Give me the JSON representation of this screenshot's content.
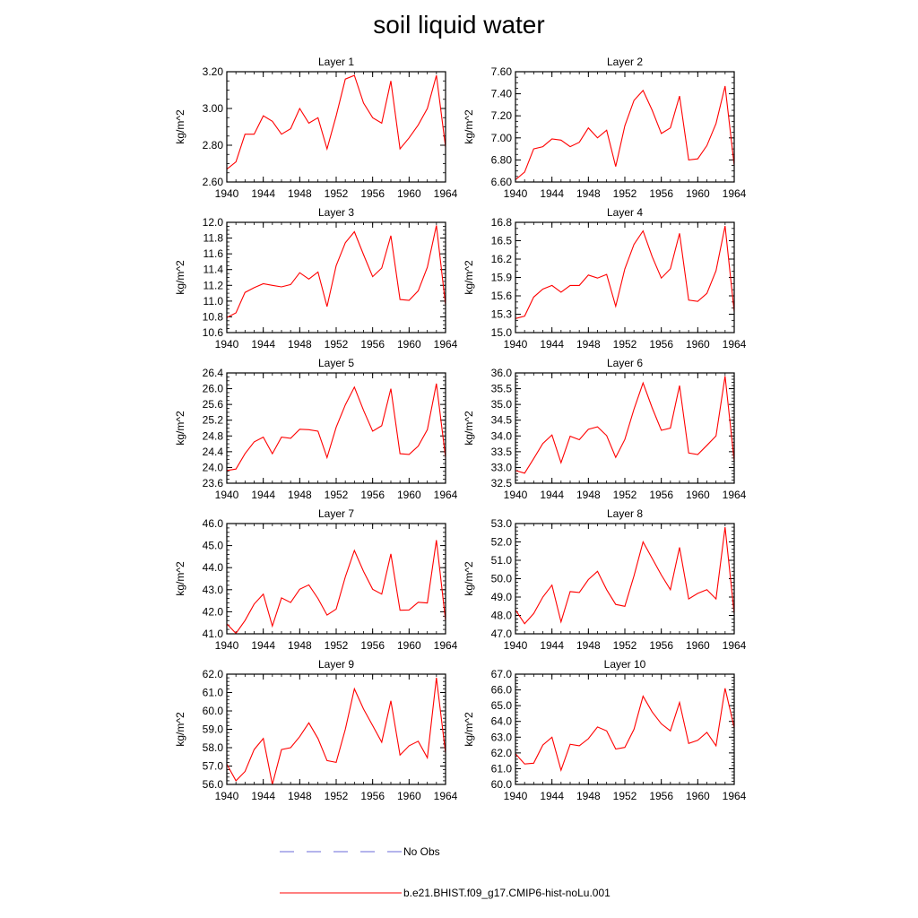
{
  "title": "soil liquid water",
  "legend": {
    "items": [
      {
        "label": "No Obs",
        "color": "#6a6ad8",
        "style": "dashed"
      },
      {
        "label": "b.e21.BHIST.f09_g17.CMIP6-hist-noLu.001",
        "color": "#ff0000",
        "style": "solid"
      }
    ]
  },
  "chart_data": [
    {
      "type": "line",
      "title": "Layer 1",
      "ylabel": "kg/m^2",
      "xlim": [
        1940,
        1964
      ],
      "ylim": [
        2.6,
        3.2
      ],
      "xticks": [
        1940,
        1944,
        1948,
        1952,
        1956,
        1960,
        1964
      ],
      "yticks": [
        "2.60",
        "2.80",
        "3.00",
        "3.20"
      ],
      "yminor": 0.05,
      "series": [
        {
          "name": "b.e21.BHIST.f09_g17.CMIP6-hist-noLu.001",
          "color": "#ff0000",
          "x": [
            1940,
            1941,
            1942,
            1943,
            1944,
            1945,
            1946,
            1947,
            1948,
            1949,
            1950,
            1951,
            1952,
            1953,
            1954,
            1955,
            1956,
            1957,
            1958,
            1959,
            1960,
            1961,
            1962,
            1963,
            1964
          ],
          "y": [
            2.67,
            2.71,
            2.86,
            2.86,
            2.96,
            2.93,
            2.86,
            2.89,
            3.0,
            2.92,
            2.95,
            2.78,
            2.96,
            3.16,
            3.18,
            3.03,
            2.95,
            2.92,
            3.15,
            2.78,
            2.84,
            2.91,
            3.0,
            3.18,
            2.79
          ]
        }
      ]
    },
    {
      "type": "line",
      "title": "Layer 2",
      "ylabel": "kg/m^2",
      "xlim": [
        1940,
        1964
      ],
      "ylim": [
        6.6,
        7.6
      ],
      "xticks": [
        1940,
        1944,
        1948,
        1952,
        1956,
        1960,
        1964
      ],
      "yticks": [
        "6.60",
        "6.80",
        "7.00",
        "7.20",
        "7.40",
        "7.60"
      ],
      "yminor": 0.05,
      "series": [
        {
          "name": "b.e21.BHIST.f09_g17.CMIP6-hist-noLu.001",
          "color": "#ff0000",
          "x": [
            1940,
            1941,
            1942,
            1943,
            1944,
            1945,
            1946,
            1947,
            1948,
            1949,
            1950,
            1951,
            1952,
            1953,
            1954,
            1955,
            1956,
            1957,
            1958,
            1959,
            1960,
            1961,
            1962,
            1963,
            1964
          ],
          "y": [
            6.62,
            6.69,
            6.9,
            6.92,
            6.99,
            6.98,
            6.92,
            6.96,
            7.09,
            7.0,
            7.07,
            6.74,
            7.11,
            7.34,
            7.43,
            7.25,
            7.04,
            7.09,
            7.38,
            6.8,
            6.81,
            6.93,
            7.13,
            7.47,
            6.75
          ]
        }
      ]
    },
    {
      "type": "line",
      "title": "Layer 3",
      "ylabel": "kg/m^2",
      "xlim": [
        1940,
        1964
      ],
      "ylim": [
        10.6,
        12.0
      ],
      "xticks": [
        1940,
        1944,
        1948,
        1952,
        1956,
        1960,
        1964
      ],
      "yticks": [
        "10.6",
        "10.8",
        "11.0",
        "11.2",
        "11.4",
        "11.6",
        "11.8",
        "12.0"
      ],
      "yminor": 0.05,
      "series": [
        {
          "name": "b.e21.BHIST.f09_g17.CMIP6-hist-noLu.001",
          "color": "#ff0000",
          "x": [
            1940,
            1941,
            1942,
            1943,
            1944,
            1945,
            1946,
            1947,
            1948,
            1949,
            1950,
            1951,
            1952,
            1953,
            1954,
            1955,
            1956,
            1957,
            1958,
            1959,
            1960,
            1961,
            1962,
            1963,
            1964
          ],
          "y": [
            10.79,
            10.85,
            11.11,
            11.17,
            11.22,
            11.2,
            11.18,
            11.21,
            11.36,
            11.28,
            11.37,
            10.93,
            11.45,
            11.74,
            11.88,
            11.59,
            11.31,
            11.42,
            11.83,
            11.02,
            11.01,
            11.13,
            11.43,
            11.96,
            10.95
          ]
        }
      ]
    },
    {
      "type": "line",
      "title": "Layer 4",
      "ylabel": "kg/m^2",
      "xlim": [
        1940,
        1964
      ],
      "ylim": [
        15.0,
        16.8
      ],
      "xticks": [
        1940,
        1944,
        1948,
        1952,
        1956,
        1960,
        1964
      ],
      "yticks": [
        "15.0",
        "15.3",
        "15.6",
        "15.9",
        "16.2",
        "16.5",
        "16.8"
      ],
      "yminor": 0.1,
      "series": [
        {
          "name": "b.e21.BHIST.f09_g17.CMIP6-hist-noLu.001",
          "color": "#ff0000",
          "x": [
            1940,
            1941,
            1942,
            1943,
            1944,
            1945,
            1946,
            1947,
            1948,
            1949,
            1950,
            1951,
            1952,
            1953,
            1954,
            1955,
            1956,
            1957,
            1958,
            1959,
            1960,
            1961,
            1962,
            1963,
            1964
          ],
          "y": [
            15.23,
            15.27,
            15.58,
            15.71,
            15.77,
            15.66,
            15.77,
            15.77,
            15.94,
            15.89,
            15.95,
            15.43,
            16.04,
            16.44,
            16.66,
            16.24,
            15.89,
            16.04,
            16.62,
            15.53,
            15.51,
            15.64,
            16.01,
            16.74,
            15.34
          ]
        }
      ]
    },
    {
      "type": "line",
      "title": "Layer 5",
      "ylabel": "kg/m^2",
      "xlim": [
        1940,
        1964
      ],
      "ylim": [
        23.6,
        26.4
      ],
      "xticks": [
        1940,
        1944,
        1948,
        1952,
        1956,
        1960,
        1964
      ],
      "yticks": [
        "23.6",
        "24.0",
        "24.4",
        "24.8",
        "25.2",
        "25.6",
        "26.0",
        "26.4"
      ],
      "yminor": 0.1,
      "series": [
        {
          "name": "b.e21.BHIST.f09_g17.CMIP6-hist-noLu.001",
          "color": "#ff0000",
          "x": [
            1940,
            1941,
            1942,
            1943,
            1944,
            1945,
            1946,
            1947,
            1948,
            1949,
            1950,
            1951,
            1952,
            1953,
            1954,
            1955,
            1956,
            1957,
            1958,
            1959,
            1960,
            1961,
            1962,
            1963,
            1964
          ],
          "y": [
            23.92,
            23.96,
            24.35,
            24.65,
            24.77,
            24.35,
            24.77,
            24.74,
            24.97,
            24.96,
            24.92,
            24.25,
            25.02,
            25.59,
            26.04,
            25.45,
            24.92,
            25.06,
            26.0,
            24.35,
            24.33,
            24.54,
            24.96,
            26.13,
            24.25
          ]
        }
      ]
    },
    {
      "type": "line",
      "title": "Layer 6",
      "ylabel": "kg/m^2",
      "xlim": [
        1940,
        1964
      ],
      "ylim": [
        32.5,
        36.0
      ],
      "xticks": [
        1940,
        1944,
        1948,
        1952,
        1956,
        1960,
        1964
      ],
      "yticks": [
        "32.5",
        "33.0",
        "33.5",
        "34.0",
        "34.5",
        "35.0",
        "35.5",
        "36.0"
      ],
      "yminor": 0.1,
      "series": [
        {
          "name": "b.e21.BHIST.f09_g17.CMIP6-hist-noLu.001",
          "color": "#ff0000",
          "x": [
            1940,
            1941,
            1942,
            1943,
            1944,
            1945,
            1946,
            1947,
            1948,
            1949,
            1950,
            1951,
            1952,
            1953,
            1954,
            1955,
            1956,
            1957,
            1958,
            1959,
            1960,
            1961,
            1962,
            1963,
            1964
          ],
          "y": [
            32.9,
            32.82,
            33.28,
            33.76,
            34.03,
            33.15,
            33.99,
            33.88,
            34.21,
            34.29,
            34.01,
            33.32,
            33.89,
            34.85,
            35.68,
            34.89,
            34.18,
            34.25,
            35.6,
            33.46,
            33.41,
            33.7,
            34.0,
            35.9,
            33.2
          ]
        }
      ]
    },
    {
      "type": "line",
      "title": "Layer 7",
      "ylabel": "kg/m^2",
      "xlim": [
        1940,
        1964
      ],
      "ylim": [
        41.0,
        46.0
      ],
      "xticks": [
        1940,
        1944,
        1948,
        1952,
        1956,
        1960,
        1964
      ],
      "yticks": [
        "41.0",
        "42.0",
        "43.0",
        "44.0",
        "45.0",
        "46.0"
      ],
      "yminor": 0.2,
      "series": [
        {
          "name": "b.e21.BHIST.f09_g17.CMIP6-hist-noLu.001",
          "color": "#ff0000",
          "x": [
            1940,
            1941,
            1942,
            1943,
            1944,
            1945,
            1946,
            1947,
            1948,
            1949,
            1950,
            1951,
            1952,
            1953,
            1954,
            1955,
            1956,
            1957,
            1958,
            1959,
            1960,
            1961,
            1962,
            1963,
            1964
          ],
          "y": [
            41.45,
            41.02,
            41.6,
            42.35,
            42.8,
            41.35,
            42.63,
            42.42,
            43.02,
            43.22,
            42.6,
            41.85,
            42.12,
            43.58,
            44.78,
            43.83,
            43.02,
            42.8,
            44.62,
            42.07,
            42.08,
            42.43,
            42.4,
            45.25,
            41.6
          ]
        }
      ]
    },
    {
      "type": "line",
      "title": "Layer 8",
      "ylabel": "kg/m^2",
      "xlim": [
        1940,
        1964
      ],
      "ylim": [
        47.0,
        53.0
      ],
      "xticks": [
        1940,
        1944,
        1948,
        1952,
        1956,
        1960,
        1964
      ],
      "yticks": [
        "47.0",
        "48.0",
        "49.0",
        "50.0",
        "51.0",
        "52.0",
        "53.0"
      ],
      "yminor": 0.2,
      "series": [
        {
          "name": "b.e21.BHIST.f09_g17.CMIP6-hist-noLu.001",
          "color": "#ff0000",
          "x": [
            1940,
            1941,
            1942,
            1943,
            1944,
            1945,
            1946,
            1947,
            1948,
            1949,
            1950,
            1951,
            1952,
            1953,
            1954,
            1955,
            1956,
            1957,
            1958,
            1959,
            1960,
            1961,
            1962,
            1963,
            1964
          ],
          "y": [
            48.3,
            47.55,
            48.1,
            49.0,
            49.65,
            47.65,
            49.3,
            49.25,
            49.95,
            50.4,
            49.4,
            48.6,
            48.5,
            50.15,
            52.0,
            51.1,
            50.2,
            49.4,
            51.7,
            48.9,
            49.2,
            49.4,
            48.9,
            52.8,
            48.1
          ]
        }
      ]
    },
    {
      "type": "line",
      "title": "Layer 9",
      "ylabel": "kg/m^2",
      "xlim": [
        1940,
        1964
      ],
      "ylim": [
        56.0,
        62.0
      ],
      "xticks": [
        1940,
        1944,
        1948,
        1952,
        1956,
        1960,
        1964
      ],
      "yticks": [
        "56.0",
        "57.0",
        "58.0",
        "59.0",
        "60.0",
        "61.0",
        "62.0"
      ],
      "yminor": 0.2,
      "series": [
        {
          "name": "b.e21.BHIST.f09_g17.CMIP6-hist-noLu.001",
          "color": "#ff0000",
          "x": [
            1940,
            1941,
            1942,
            1943,
            1944,
            1945,
            1946,
            1947,
            1948,
            1949,
            1950,
            1951,
            1952,
            1953,
            1954,
            1955,
            1956,
            1957,
            1958,
            1959,
            1960,
            1961,
            1962,
            1963,
            1964
          ],
          "y": [
            57.1,
            56.2,
            56.7,
            57.9,
            58.5,
            56.0,
            57.9,
            58.0,
            58.6,
            59.35,
            58.5,
            57.3,
            57.2,
            59.0,
            61.2,
            60.1,
            59.2,
            58.3,
            60.55,
            57.6,
            58.1,
            58.35,
            57.45,
            61.8,
            57.7
          ]
        }
      ]
    },
    {
      "type": "line",
      "title": "Layer 10",
      "ylabel": "kg/m^2",
      "xlim": [
        1940,
        1964
      ],
      "ylim": [
        60.0,
        67.0
      ],
      "xticks": [
        1940,
        1944,
        1948,
        1952,
        1956,
        1960,
        1964
      ],
      "yticks": [
        "60.0",
        "61.0",
        "62.0",
        "63.0",
        "64.0",
        "65.0",
        "66.0",
        "67.0"
      ],
      "yminor": 0.2,
      "series": [
        {
          "name": "b.e21.BHIST.f09_g17.CMIP6-hist-noLu.001",
          "color": "#ff0000",
          "x": [
            1940,
            1941,
            1942,
            1943,
            1944,
            1945,
            1946,
            1947,
            1948,
            1949,
            1950,
            1951,
            1952,
            1953,
            1954,
            1955,
            1956,
            1957,
            1958,
            1959,
            1960,
            1961,
            1962,
            1963,
            1964
          ],
          "y": [
            61.95,
            61.3,
            61.35,
            62.5,
            63.0,
            60.9,
            62.55,
            62.45,
            62.9,
            63.65,
            63.4,
            62.25,
            62.35,
            63.5,
            65.6,
            64.6,
            63.85,
            63.4,
            65.2,
            62.6,
            62.8,
            63.3,
            62.45,
            66.1,
            63.6
          ]
        }
      ]
    }
  ]
}
